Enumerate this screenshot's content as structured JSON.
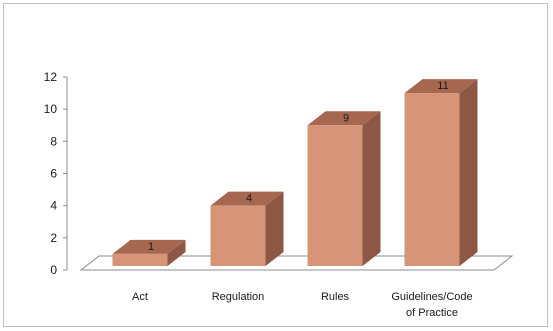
{
  "chart_data": {
    "type": "bar",
    "style": "3d-column",
    "categories": [
      "Act",
      "Regulation",
      "Rules",
      "Guidelines/Code\nof Practice"
    ],
    "values": [
      1,
      4,
      9,
      11
    ],
    "data_labels": [
      "1",
      "4",
      "9",
      "11"
    ],
    "ylim": [
      0,
      12
    ],
    "yticks": [
      "0",
      "2",
      "4",
      "6",
      "8",
      "10",
      "12"
    ],
    "grid": false,
    "legend": "none",
    "title": "",
    "xlabel": "",
    "ylabel": "",
    "colors": {
      "front": "#d69578",
      "side": "#8c5745",
      "top": "#a66750",
      "axis": "#8c8c8c",
      "floor": "#ffffff"
    }
  }
}
